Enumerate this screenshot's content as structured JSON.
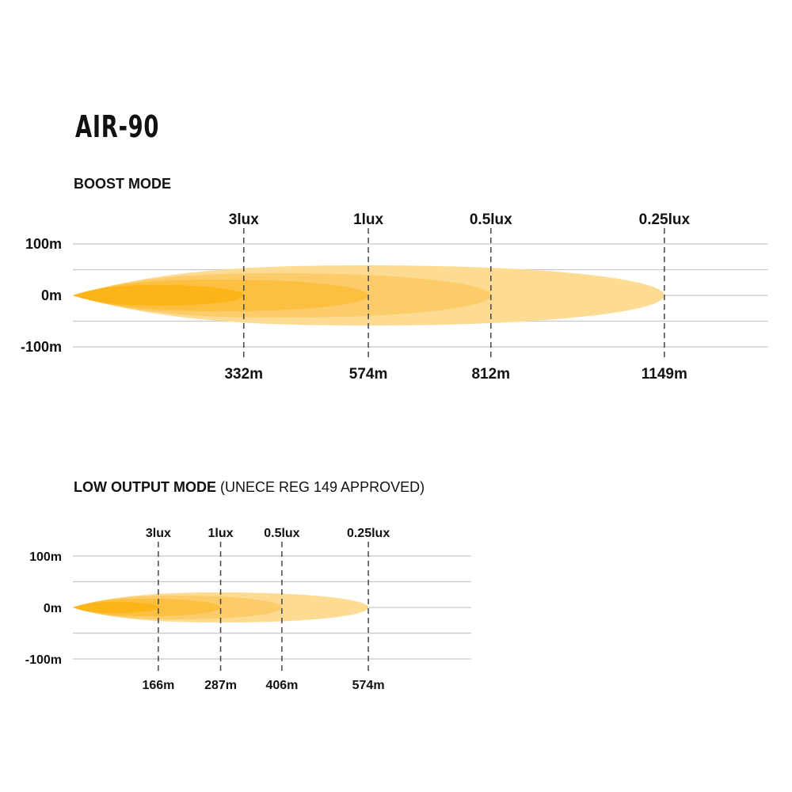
{
  "title": "AIR-90",
  "chart_data": [
    {
      "type": "area",
      "title": "BOOST MODE",
      "subtitle_note": "",
      "y_ticks": [
        "100m",
        "0m",
        "-100m"
      ],
      "y_range_m": [
        -100,
        100
      ],
      "grid": true,
      "x_max_m": 1350,
      "series": [
        {
          "name": "3lux",
          "distance_m": 332,
          "label": "332m"
        },
        {
          "name": "1lux",
          "distance_m": 574,
          "label": "574m"
        },
        {
          "name": "0.5lux",
          "distance_m": 812,
          "label": "812m"
        },
        {
          "name": "0.25lux",
          "distance_m": 1149,
          "label": "1149m"
        }
      ]
    },
    {
      "type": "area",
      "title": "LOW OUTPUT MODE",
      "subtitle_note": "(UNECE REG 149 APPROVED)",
      "y_ticks": [
        "100m",
        "0m",
        "-100m"
      ],
      "y_range_m": [
        -100,
        100
      ],
      "grid": true,
      "x_max_m": 774,
      "series": [
        {
          "name": "3lux",
          "distance_m": 166,
          "label": "166m"
        },
        {
          "name": "1lux",
          "distance_m": 287,
          "label": "287m"
        },
        {
          "name": "0.5lux",
          "distance_m": 406,
          "label": "406m"
        },
        {
          "name": "0.25lux",
          "distance_m": 574,
          "label": "574m"
        }
      ]
    }
  ],
  "colors": {
    "3lux": "#FBB519",
    "1lux": "#FCBF40",
    "0.5lux": "#FCCC6A",
    "0.25lux": "#FDDB92",
    "grid": "#c8c8c8",
    "marker": "#444444"
  }
}
